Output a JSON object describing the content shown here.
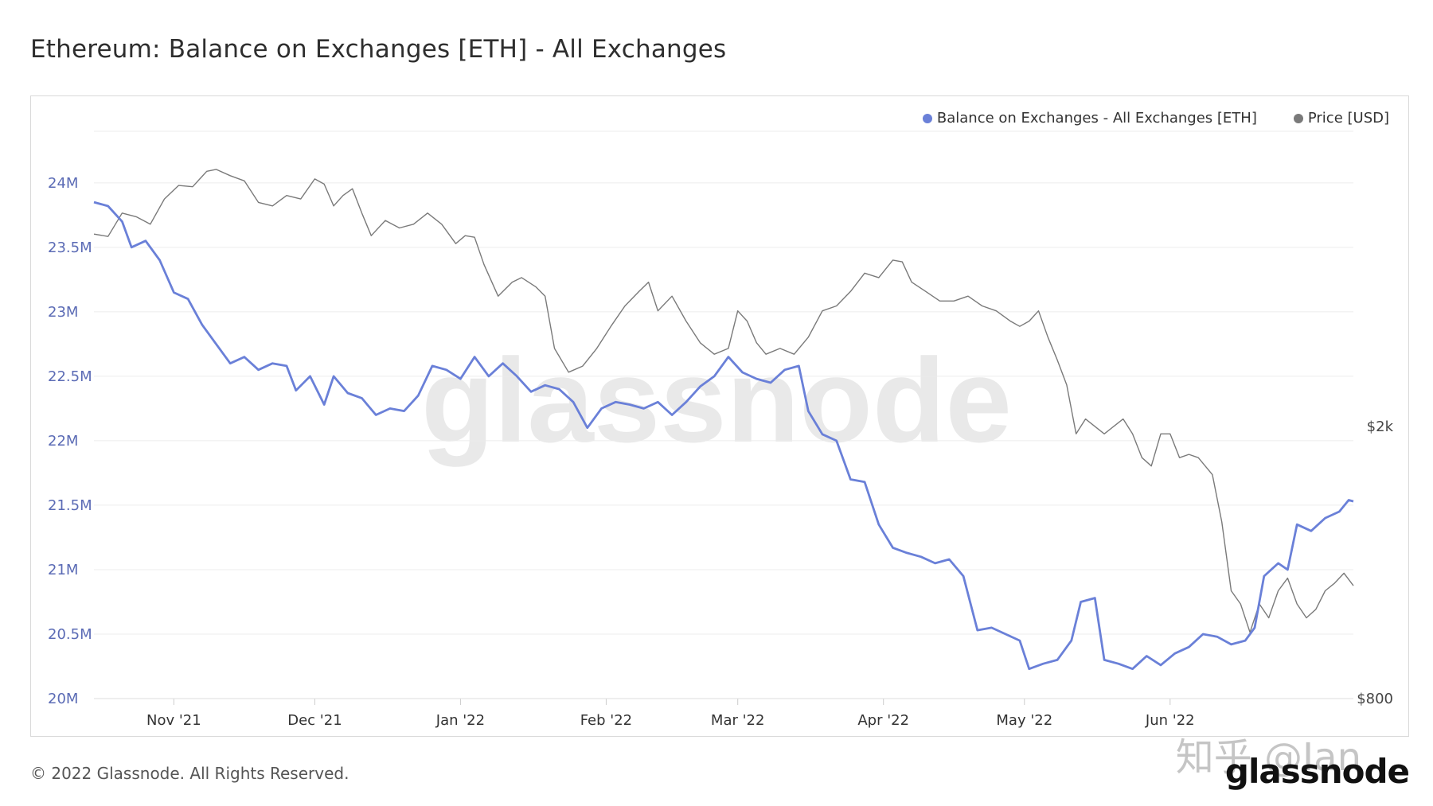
{
  "title": "Ethereum: Balance on Exchanges [ETH] - All Exchanges",
  "legend": {
    "balance_label": "Balance on Exchanges - All Exchanges [ETH]",
    "price_label": "Price [USD]",
    "balance_color": "#6a80d8",
    "price_color": "#7a7a7a"
  },
  "watermark": "glassnode",
  "footer": "© 2022 Glassnode. All Rights Reserved.",
  "brand": "glassnode",
  "overlay_watermark": "知乎 @Ian",
  "chart_data": {
    "type": "line",
    "title": "Ethereum: Balance on Exchanges [ETH] - All Exchanges",
    "y_ticks": [
      "20M",
      "20.5M",
      "21M",
      "21.5M",
      "22M",
      "22.5M",
      "23M",
      "23.5M",
      "24M"
    ],
    "y2_ticks": [
      "$800",
      "$2k"
    ],
    "x_ticks": [
      "Nov '21",
      "Dec '21",
      "Jan '22",
      "Feb '22",
      "Mar '22",
      "Apr '22",
      "May '22",
      "Jun '22"
    ],
    "ylim": [
      20000000,
      24400000
    ],
    "y2_scale": "log",
    "y2lim": [
      800,
      5400
    ],
    "grid": true,
    "legend_position": "top-right",
    "series": [
      {
        "name": "Balance on Exchanges - All Exchanges [ETH]",
        "axis": "left",
        "points": [
          [
            "2021-10-15",
            23850000
          ],
          [
            "2021-10-18",
            23820000
          ],
          [
            "2021-10-21",
            23700000
          ],
          [
            "2021-10-23",
            23500000
          ],
          [
            "2021-10-26",
            23550000
          ],
          [
            "2021-10-29",
            23400000
          ],
          [
            "2021-11-01",
            23150000
          ],
          [
            "2021-11-04",
            23100000
          ],
          [
            "2021-11-07",
            22900000
          ],
          [
            "2021-11-10",
            22750000
          ],
          [
            "2021-11-13",
            22600000
          ],
          [
            "2021-11-16",
            22650000
          ],
          [
            "2021-11-19",
            22550000
          ],
          [
            "2021-11-22",
            22600000
          ],
          [
            "2021-11-25",
            22580000
          ],
          [
            "2021-11-27",
            22390000
          ],
          [
            "2021-11-30",
            22500000
          ],
          [
            "2021-12-03",
            22280000
          ],
          [
            "2021-12-05",
            22500000
          ],
          [
            "2021-12-08",
            22370000
          ],
          [
            "2021-12-11",
            22330000
          ],
          [
            "2021-12-14",
            22200000
          ],
          [
            "2021-12-17",
            22250000
          ],
          [
            "2021-12-20",
            22230000
          ],
          [
            "2021-12-23",
            22350000
          ],
          [
            "2021-12-26",
            22580000
          ],
          [
            "2021-12-29",
            22550000
          ],
          [
            "2022-01-01",
            22480000
          ],
          [
            "2022-01-04",
            22650000
          ],
          [
            "2022-01-07",
            22500000
          ],
          [
            "2022-01-10",
            22600000
          ],
          [
            "2022-01-13",
            22500000
          ],
          [
            "2022-01-16",
            22380000
          ],
          [
            "2022-01-19",
            22430000
          ],
          [
            "2022-01-22",
            22400000
          ],
          [
            "2022-01-25",
            22300000
          ],
          [
            "2022-01-28",
            22100000
          ],
          [
            "2022-01-31",
            22250000
          ],
          [
            "2022-02-03",
            22300000
          ],
          [
            "2022-02-06",
            22280000
          ],
          [
            "2022-02-09",
            22250000
          ],
          [
            "2022-02-12",
            22300000
          ],
          [
            "2022-02-15",
            22200000
          ],
          [
            "2022-02-18",
            22300000
          ],
          [
            "2022-02-21",
            22420000
          ],
          [
            "2022-02-24",
            22500000
          ],
          [
            "2022-02-27",
            22650000
          ],
          [
            "2022-03-02",
            22530000
          ],
          [
            "2022-03-05",
            22480000
          ],
          [
            "2022-03-08",
            22450000
          ],
          [
            "2022-03-11",
            22550000
          ],
          [
            "2022-03-14",
            22580000
          ],
          [
            "2022-03-16",
            22230000
          ],
          [
            "2022-03-19",
            22050000
          ],
          [
            "2022-03-22",
            22000000
          ],
          [
            "2022-03-25",
            21700000
          ],
          [
            "2022-03-28",
            21680000
          ],
          [
            "2022-03-31",
            21350000
          ],
          [
            "2022-04-03",
            21170000
          ],
          [
            "2022-04-06",
            21130000
          ],
          [
            "2022-04-09",
            21100000
          ],
          [
            "2022-04-12",
            21050000
          ],
          [
            "2022-04-15",
            21080000
          ],
          [
            "2022-04-18",
            20950000
          ],
          [
            "2022-04-21",
            20530000
          ],
          [
            "2022-04-24",
            20550000
          ],
          [
            "2022-04-27",
            20500000
          ],
          [
            "2022-04-30",
            20450000
          ],
          [
            "2022-05-02",
            20230000
          ],
          [
            "2022-05-05",
            20270000
          ],
          [
            "2022-05-08",
            20300000
          ],
          [
            "2022-05-11",
            20450000
          ],
          [
            "2022-05-13",
            20750000
          ],
          [
            "2022-05-16",
            20780000
          ],
          [
            "2022-05-18",
            20300000
          ],
          [
            "2022-05-21",
            20270000
          ],
          [
            "2022-05-24",
            20230000
          ],
          [
            "2022-05-27",
            20330000
          ],
          [
            "2022-05-30",
            20260000
          ],
          [
            "2022-06-02",
            20350000
          ],
          [
            "2022-06-05",
            20400000
          ],
          [
            "2022-06-08",
            20500000
          ],
          [
            "2022-06-11",
            20480000
          ],
          [
            "2022-06-14",
            20420000
          ],
          [
            "2022-06-17",
            20450000
          ],
          [
            "2022-06-19",
            20550000
          ],
          [
            "2022-06-21",
            20950000
          ],
          [
            "2022-06-24",
            21050000
          ],
          [
            "2022-06-26",
            21000000
          ],
          [
            "2022-06-28",
            21350000
          ],
          [
            "2022-07-01",
            21300000
          ],
          [
            "2022-07-04",
            21400000
          ],
          [
            "2022-07-07",
            21450000
          ],
          [
            "2022-07-09",
            21540000
          ],
          [
            "2022-07-10",
            21530000
          ]
        ]
      },
      {
        "name": "Price [USD]",
        "axis": "right",
        "points": [
          [
            "2021-10-15",
            3820
          ],
          [
            "2021-10-18",
            3790
          ],
          [
            "2021-10-21",
            4100
          ],
          [
            "2021-10-24",
            4050
          ],
          [
            "2021-10-27",
            3950
          ],
          [
            "2021-10-30",
            4300
          ],
          [
            "2021-11-02",
            4500
          ],
          [
            "2021-11-05",
            4480
          ],
          [
            "2021-11-08",
            4720
          ],
          [
            "2021-11-10",
            4750
          ],
          [
            "2021-11-13",
            4650
          ],
          [
            "2021-11-16",
            4570
          ],
          [
            "2021-11-19",
            4250
          ],
          [
            "2021-11-22",
            4200
          ],
          [
            "2021-11-25",
            4350
          ],
          [
            "2021-11-28",
            4300
          ],
          [
            "2021-12-01",
            4600
          ],
          [
            "2021-12-03",
            4520
          ],
          [
            "2021-12-05",
            4200
          ],
          [
            "2021-12-07",
            4350
          ],
          [
            "2021-12-09",
            4450
          ],
          [
            "2021-12-11",
            4100
          ],
          [
            "2021-12-13",
            3800
          ],
          [
            "2021-12-16",
            4000
          ],
          [
            "2021-12-19",
            3900
          ],
          [
            "2021-12-22",
            3950
          ],
          [
            "2021-12-25",
            4100
          ],
          [
            "2021-12-28",
            3950
          ],
          [
            "2021-12-31",
            3700
          ],
          [
            "2022-01-02",
            3800
          ],
          [
            "2022-01-04",
            3780
          ],
          [
            "2022-01-06",
            3450
          ],
          [
            "2022-01-09",
            3100
          ],
          [
            "2022-01-12",
            3250
          ],
          [
            "2022-01-14",
            3300
          ],
          [
            "2022-01-17",
            3200
          ],
          [
            "2022-01-19",
            3100
          ],
          [
            "2022-01-21",
            2600
          ],
          [
            "2022-01-24",
            2400
          ],
          [
            "2022-01-27",
            2450
          ],
          [
            "2022-01-30",
            2600
          ],
          [
            "2022-02-02",
            2800
          ],
          [
            "2022-02-05",
            3000
          ],
          [
            "2022-02-08",
            3150
          ],
          [
            "2022-02-10",
            3250
          ],
          [
            "2022-02-12",
            2950
          ],
          [
            "2022-02-15",
            3100
          ],
          [
            "2022-02-18",
            2850
          ],
          [
            "2022-02-21",
            2650
          ],
          [
            "2022-02-24",
            2550
          ],
          [
            "2022-02-27",
            2600
          ],
          [
            "2022-03-01",
            2950
          ],
          [
            "2022-03-03",
            2850
          ],
          [
            "2022-03-05",
            2650
          ],
          [
            "2022-03-07",
            2550
          ],
          [
            "2022-03-10",
            2600
          ],
          [
            "2022-03-13",
            2550
          ],
          [
            "2022-03-16",
            2700
          ],
          [
            "2022-03-19",
            2950
          ],
          [
            "2022-03-22",
            3000
          ],
          [
            "2022-03-25",
            3150
          ],
          [
            "2022-03-28",
            3350
          ],
          [
            "2022-03-31",
            3300
          ],
          [
            "2022-04-03",
            3500
          ],
          [
            "2022-04-05",
            3480
          ],
          [
            "2022-04-07",
            3250
          ],
          [
            "2022-04-10",
            3150
          ],
          [
            "2022-04-13",
            3050
          ],
          [
            "2022-04-16",
            3050
          ],
          [
            "2022-04-19",
            3100
          ],
          [
            "2022-04-22",
            3000
          ],
          [
            "2022-04-25",
            2950
          ],
          [
            "2022-04-28",
            2850
          ],
          [
            "2022-04-30",
            2800
          ],
          [
            "2022-05-02",
            2850
          ],
          [
            "2022-05-04",
            2950
          ],
          [
            "2022-05-06",
            2700
          ],
          [
            "2022-05-08",
            2500
          ],
          [
            "2022-05-10",
            2300
          ],
          [
            "2022-05-12",
            1950
          ],
          [
            "2022-05-14",
            2050
          ],
          [
            "2022-05-16",
            2000
          ],
          [
            "2022-05-18",
            1950
          ],
          [
            "2022-05-20",
            2000
          ],
          [
            "2022-05-22",
            2050
          ],
          [
            "2022-05-24",
            1950
          ],
          [
            "2022-05-26",
            1800
          ],
          [
            "2022-05-28",
            1750
          ],
          [
            "2022-05-30",
            1950
          ],
          [
            "2022-06-01",
            1950
          ],
          [
            "2022-06-03",
            1800
          ],
          [
            "2022-06-05",
            1820
          ],
          [
            "2022-06-07",
            1800
          ],
          [
            "2022-06-10",
            1700
          ],
          [
            "2022-06-12",
            1450
          ],
          [
            "2022-06-14",
            1150
          ],
          [
            "2022-06-16",
            1100
          ],
          [
            "2022-06-18",
            1000
          ],
          [
            "2022-06-20",
            1100
          ],
          [
            "2022-06-22",
            1050
          ],
          [
            "2022-06-24",
            1150
          ],
          [
            "2022-06-26",
            1200
          ],
          [
            "2022-06-28",
            1100
          ],
          [
            "2022-06-30",
            1050
          ],
          [
            "2022-07-02",
            1080
          ],
          [
            "2022-07-04",
            1150
          ],
          [
            "2022-07-06",
            1180
          ],
          [
            "2022-07-08",
            1220
          ],
          [
            "2022-07-10",
            1170
          ]
        ]
      }
    ]
  }
}
